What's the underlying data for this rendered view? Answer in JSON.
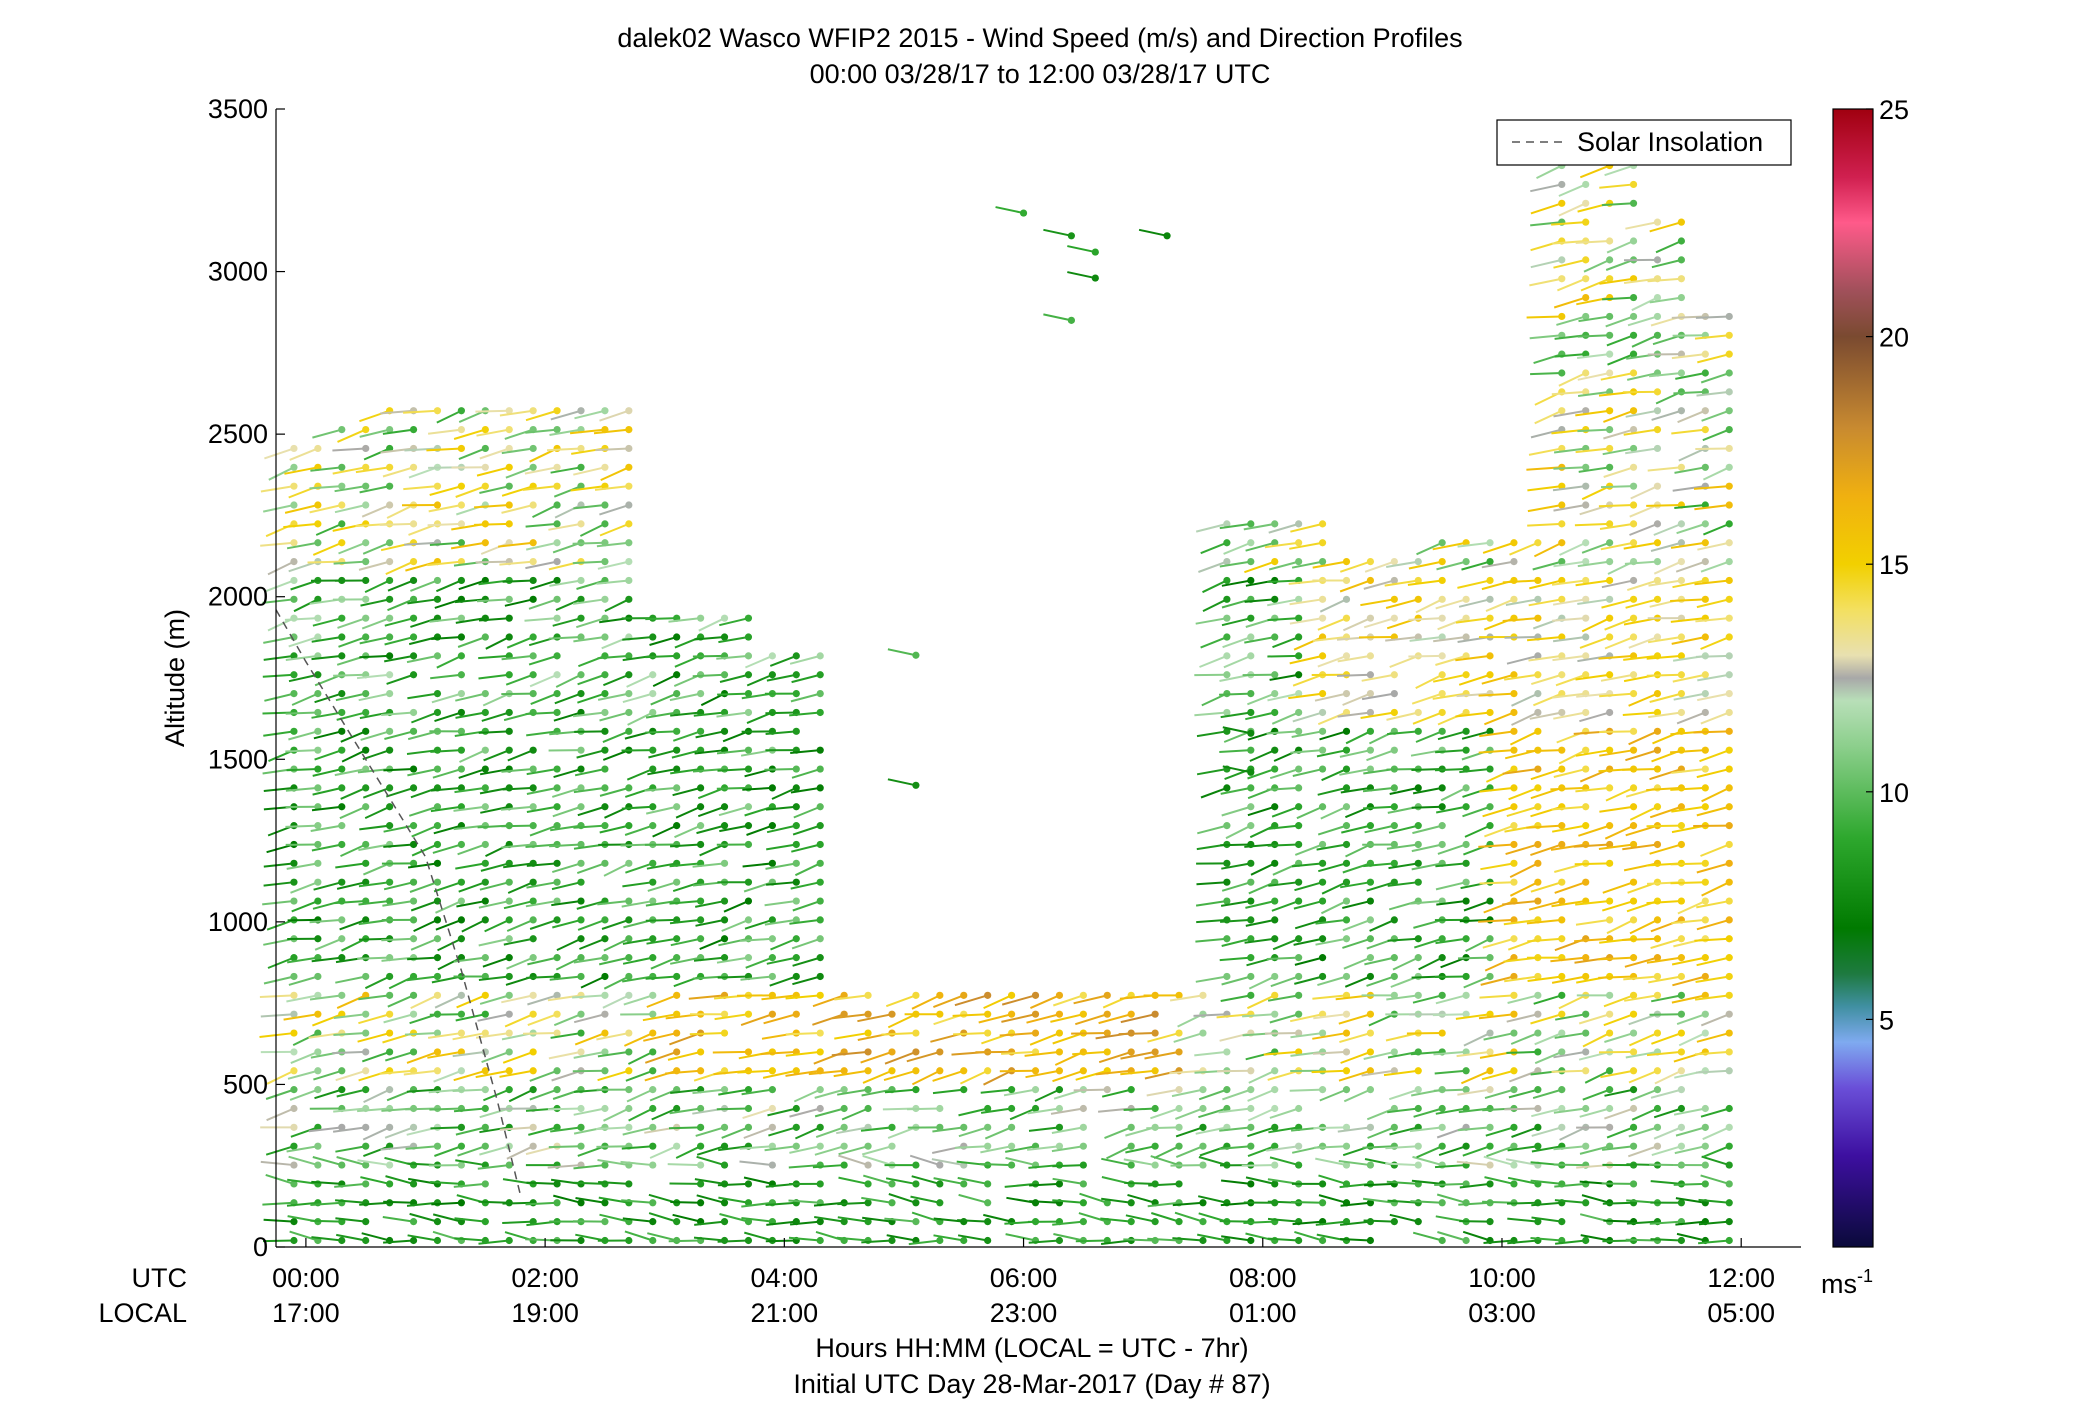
{
  "chart_data": {
    "type": "scatter",
    "title": "dalek02 Wasco WFIP2 2015 - Wind Speed (m/s) and Direction Profiles",
    "subtitle": "00:00 03/28/17 to 12:00 03/28/17  UTC",
    "ylabel": "Altitude (m)",
    "xlabel": "Hours HH:MM  (LOCAL = UTC - 7hr)",
    "xlabel2": "Initial UTC Day 28-Mar-2017 (Day # 87)",
    "ylim": [
      0,
      3500
    ],
    "xlim_hours": [
      -0.25,
      12.5
    ],
    "y_ticks": [
      0,
      500,
      1000,
      1500,
      2000,
      2500,
      3000,
      3500
    ],
    "x_ticks_utc": [
      "00:00",
      "02:00",
      "04:00",
      "06:00",
      "08:00",
      "10:00",
      "12:00"
    ],
    "x_ticks_local": [
      "17:00",
      "19:00",
      "21:00",
      "23:00",
      "01:00",
      "03:00",
      "05:00"
    ],
    "row_label_utc": "UTC",
    "row_label_local": "LOCAL",
    "legend": {
      "label": "Solar Insolation",
      "placement": "top-right"
    },
    "colorbar": {
      "min": 0,
      "max": 25,
      "ticks": [
        5,
        10,
        15,
        20,
        25
      ],
      "unit_label": "ms",
      "unit_exponent": "-1",
      "stops": [
        {
          "v": 0,
          "color": "#0a0a3a"
        },
        {
          "v": 2,
          "color": "#3d0fa0"
        },
        {
          "v": 3.5,
          "color": "#6a4fd8"
        },
        {
          "v": 4.5,
          "color": "#7faaf0"
        },
        {
          "v": 5.3,
          "color": "#3f8fa0"
        },
        {
          "v": 6,
          "color": "#1e7a40"
        },
        {
          "v": 7,
          "color": "#007a00"
        },
        {
          "v": 9,
          "color": "#2ea82e"
        },
        {
          "v": 11,
          "color": "#8ccf8c"
        },
        {
          "v": 12,
          "color": "#b8dfb8"
        },
        {
          "v": 12.5,
          "color": "#a8a8a8"
        },
        {
          "v": 13,
          "color": "#e8e0b0"
        },
        {
          "v": 14,
          "color": "#f3e060"
        },
        {
          "v": 15,
          "color": "#f2d000"
        },
        {
          "v": 16.5,
          "color": "#f0b010"
        },
        {
          "v": 18,
          "color": "#c88a30"
        },
        {
          "v": 20,
          "color": "#7a4a30"
        },
        {
          "v": 21,
          "color": "#a0505a"
        },
        {
          "v": 22.5,
          "color": "#ff5a8a"
        },
        {
          "v": 23.5,
          "color": "#d02050"
        },
        {
          "v": 25,
          "color": "#a00010"
        }
      ]
    },
    "solar_insolation_line": {
      "style": "dashed",
      "hours": [
        -0.25,
        0.0,
        0.5,
        1.0,
        1.3,
        1.6,
        1.8
      ],
      "altitudes": [
        1960,
        1800,
        1500,
        1200,
        850,
        450,
        150
      ]
    },
    "profile_summary": [
      {
        "hour_start": -0.1,
        "hour_end": 1.0,
        "alt_top_m": 2470,
        "note": "mixed green/orange, top layer ~2400"
      },
      {
        "hour_start": 1.0,
        "hour_end": 3.0,
        "alt_top_m": 2620,
        "note": "green with orange bands"
      },
      {
        "hour_start": 3.0,
        "hour_end": 4.0,
        "alt_top_m": 1950,
        "note": "mostly dark green"
      },
      {
        "hour_start": 4.0,
        "hour_end": 7.5,
        "alt_top_m": 800,
        "note": "low-level winds, scattered aloft"
      },
      {
        "hour_start": 7.5,
        "hour_end": 9.5,
        "alt_top_m": 2270,
        "note": "green and yellow"
      },
      {
        "hour_start": 9.5,
        "hour_end": 12.0,
        "alt_top_m": 3470,
        "note": "deep profiles, orange bands ~1300-1600 m"
      }
    ]
  }
}
